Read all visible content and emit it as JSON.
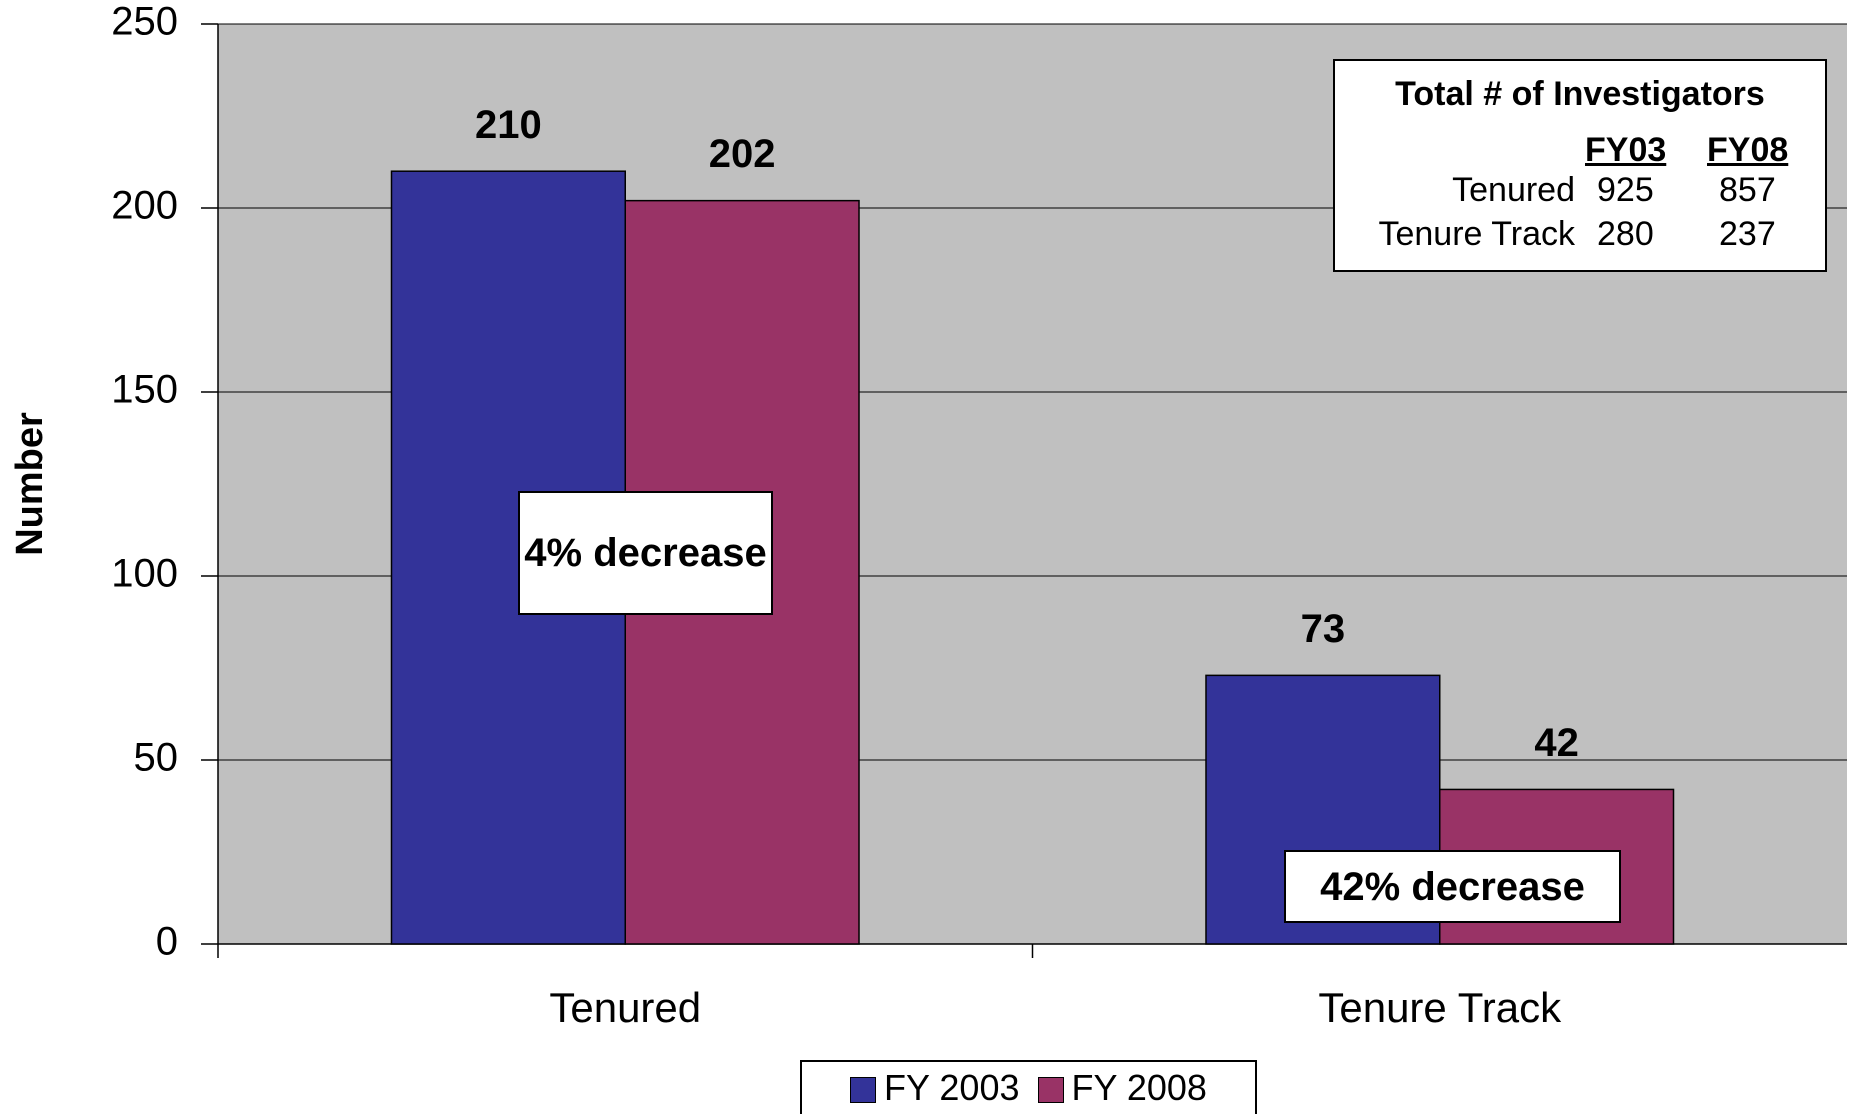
{
  "chart_data": {
    "type": "bar",
    "categories": [
      "Tenured",
      "Tenure Track"
    ],
    "series": [
      {
        "name": "FY 2003",
        "color": "#333399",
        "values": [
          210,
          73
        ]
      },
      {
        "name": "FY 2008",
        "color": "#993366",
        "values": [
          202,
          42
        ]
      }
    ],
    "ylabel": "Number",
    "ylim": [
      0,
      250
    ],
    "yticks": [
      0,
      50,
      100,
      150,
      200,
      250
    ],
    "grid": true,
    "plot_background": "#c0c0c0",
    "legend": "bottom",
    "annotations": [
      "4% decrease",
      "42% decrease"
    ],
    "inset_table": {
      "title": "Total # of Investigators",
      "columns": [
        "FY03",
        "FY08"
      ],
      "rows": [
        {
          "label": "Tenured",
          "values": [
            "925",
            "857"
          ]
        },
        {
          "label": "Tenure Track",
          "values": [
            "280",
            "237"
          ]
        }
      ]
    }
  }
}
